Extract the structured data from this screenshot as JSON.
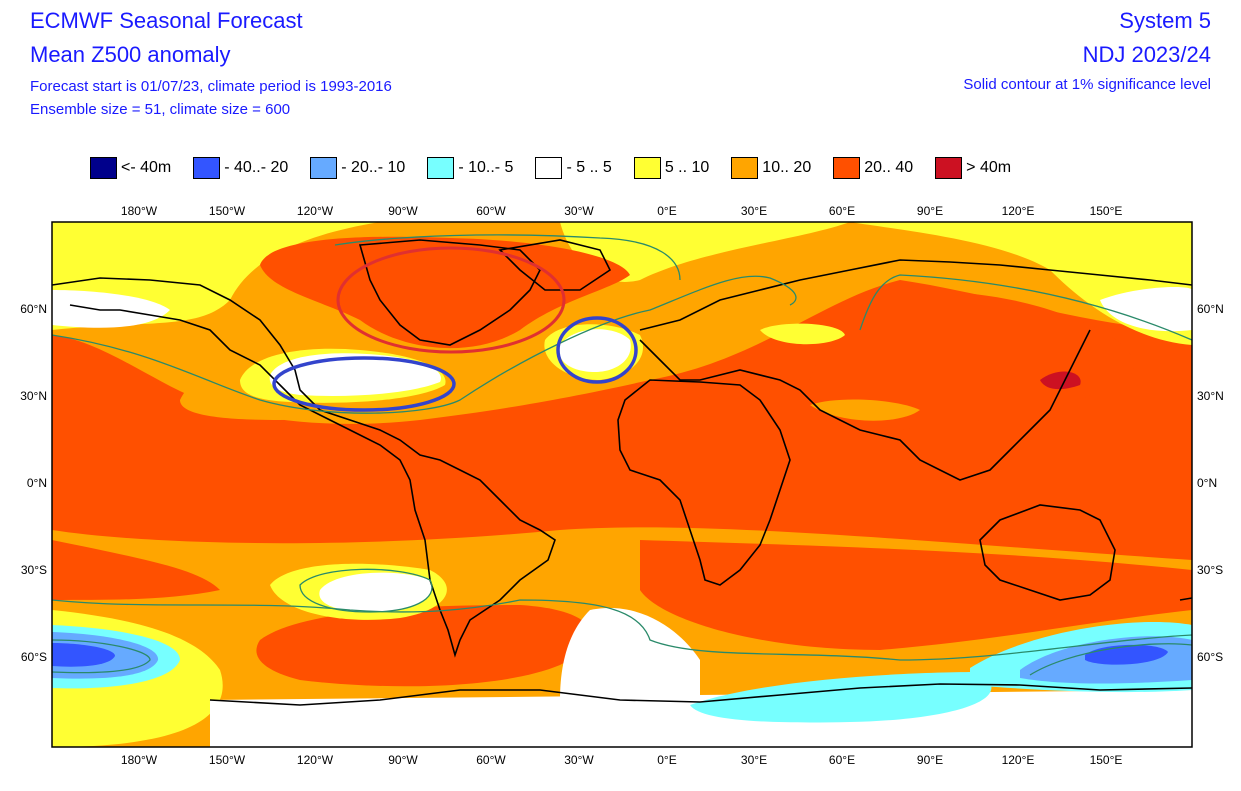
{
  "header": {
    "title": "ECMWF Seasonal Forecast",
    "subtitle": "Mean Z500 anomaly",
    "line1": "Forecast start is 01/07/23, climate period is 1993-2016",
    "line2": "Ensemble size = 51, climate size = 600",
    "system": "System 5",
    "period": "NDJ 2023/24",
    "significance": "Solid contour at 1% significance level"
  },
  "legend": [
    {
      "label": "<- 40m",
      "color": "#00008b"
    },
    {
      "label": "- 40..- 20",
      "color": "#3355ff"
    },
    {
      "label": "- 20..- 10",
      "color": "#66aaff"
    },
    {
      "label": "- 10..- 5",
      "color": "#77ffff"
    },
    {
      "label": "- 5 .. 5",
      "color": "#ffffff"
    },
    {
      "label": "5 .. 10",
      "color": "#ffff33"
    },
    {
      "label": "10.. 20",
      "color": "#ffa500"
    },
    {
      "label": "20.. 40",
      "color": "#ff5000"
    },
    {
      "label": "> 40m",
      "color": "#cc1122"
    }
  ],
  "axes": {
    "lon_labels": [
      "180°W",
      "150°W",
      "120°W",
      "90°W",
      "60°W",
      "30°W",
      "0°E",
      "30°E",
      "60°E",
      "90°E",
      "120°E",
      "150°E"
    ],
    "lat_labels": [
      "60°N",
      "30°N",
      "0°N",
      "30°S",
      "60°S"
    ]
  },
  "annotations": [
    {
      "color": "#e03030",
      "shape": "ellipse",
      "region": "Canada / North America"
    },
    {
      "color": "#3344cc",
      "shape": "ellipse",
      "region": "southern United States"
    },
    {
      "color": "#3344cc",
      "shape": "ellipse",
      "region": "North Atlantic"
    }
  ]
}
